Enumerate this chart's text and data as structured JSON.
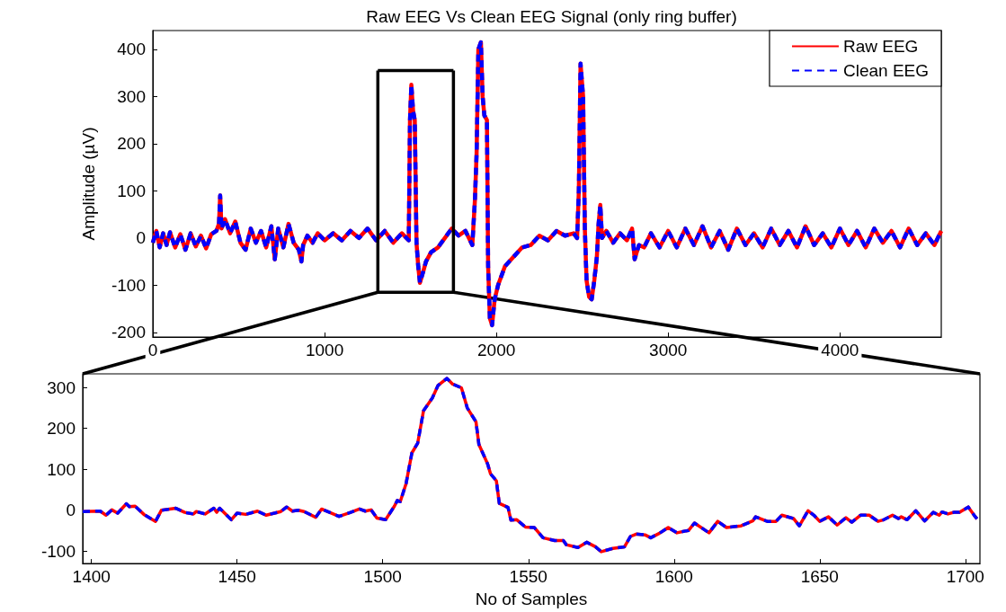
{
  "chart_data": [
    {
      "type": "line",
      "title": "Raw EEG Vs Clean EEG Signal (only ring buffer)",
      "ylabel": "Amplitude (µV)",
      "legend": "top right",
      "marker": "none",
      "xlim": [
        0,
        4590
      ],
      "ylim": [
        -210,
        440
      ],
      "xticks": [
        0,
        1000,
        2000,
        3000,
        4000
      ],
      "yticks": [
        -200,
        -100,
        0,
        100,
        200,
        300,
        400
      ],
      "series": [
        {
          "name": "Raw EEG",
          "color": "#ff0000",
          "line_style": "solid",
          "x": [
            0,
            20,
            40,
            60,
            80,
            100,
            130,
            160,
            190,
            220,
            250,
            280,
            310,
            340,
            370,
            385,
            392,
            400,
            420,
            450,
            480,
            510,
            540,
            570,
            600,
            630,
            660,
            690,
            700,
            710,
            730,
            760,
            790,
            820,
            850,
            865,
            875,
            900,
            930,
            960,
            1000,
            1050,
            1100,
            1150,
            1200,
            1250,
            1300,
            1350,
            1400,
            1450,
            1490,
            1497,
            1505,
            1515,
            1525,
            1535,
            1545,
            1555,
            1575,
            1590,
            1620,
            1660,
            1700,
            1740,
            1780,
            1820,
            1860,
            1875,
            1885,
            1895,
            1910,
            1920,
            1930,
            1945,
            1952,
            1962,
            1975,
            1990,
            2010,
            2050,
            2100,
            2150,
            2200,
            2250,
            2300,
            2350,
            2400,
            2450,
            2470,
            2480,
            2490,
            2505,
            2515,
            2525,
            2540,
            2555,
            2570,
            2585,
            2595,
            2605,
            2615,
            2640,
            2680,
            2720,
            2760,
            2790,
            2805,
            2830,
            2860,
            2900,
            2950,
            3000,
            3050,
            3100,
            3150,
            3200,
            3250,
            3300,
            3350,
            3400,
            3450,
            3500,
            3550,
            3600,
            3650,
            3700,
            3750,
            3800,
            3850,
            3900,
            3950,
            4000,
            4050,
            4100,
            4150,
            4200,
            4250,
            4300,
            4350,
            4400,
            4450,
            4500,
            4550,
            4590
          ],
          "values": [
            -10,
            15,
            -20,
            10,
            -15,
            12,
            -20,
            8,
            -25,
            10,
            -18,
            5,
            -22,
            8,
            15,
            30,
            90,
            20,
            40,
            10,
            35,
            -10,
            -25,
            20,
            -10,
            15,
            -20,
            25,
            -10,
            -45,
            20,
            -20,
            30,
            -10,
            -25,
            -50,
            -15,
            5,
            -10,
            10,
            -5,
            10,
            -5,
            15,
            0,
            20,
            -5,
            15,
            -10,
            10,
            -5,
            250,
            325,
            270,
            250,
            -10,
            -60,
            -95,
            -70,
            -50,
            -30,
            -20,
            0,
            20,
            5,
            15,
            -15,
            80,
            180,
            400,
            415,
            300,
            260,
            250,
            -60,
            -170,
            -185,
            -130,
            -100,
            -60,
            -40,
            -20,
            -15,
            5,
            -5,
            15,
            5,
            10,
            0,
            100,
            370,
            300,
            20,
            -90,
            -125,
            -130,
            -90,
            -40,
            30,
            70,
            0,
            15,
            -10,
            10,
            -5,
            20,
            -45,
            -15,
            -20,
            10,
            -20,
            15,
            -20,
            20,
            -15,
            25,
            -20,
            15,
            -25,
            20,
            -15,
            10,
            -20,
            20,
            -15,
            15,
            -20,
            25,
            -15,
            10,
            -20,
            20,
            -15,
            15,
            -20,
            20,
            -10,
            15,
            -20,
            20,
            -15,
            10,
            -15,
            15
          ]
        },
        {
          "name": "Clean EEG",
          "color": "#0000ff",
          "line_style": "dashed",
          "x": [
            0,
            20,
            40,
            60,
            80,
            100,
            130,
            160,
            190,
            220,
            250,
            280,
            310,
            340,
            370,
            385,
            392,
            400,
            420,
            450,
            480,
            510,
            540,
            570,
            600,
            630,
            660,
            690,
            700,
            710,
            730,
            760,
            790,
            820,
            850,
            865,
            875,
            900,
            930,
            960,
            1000,
            1050,
            1100,
            1150,
            1200,
            1250,
            1300,
            1350,
            1400,
            1450,
            1490,
            1497,
            1505,
            1515,
            1525,
            1535,
            1545,
            1555,
            1575,
            1590,
            1620,
            1660,
            1700,
            1740,
            1780,
            1820,
            1860,
            1875,
            1885,
            1895,
            1910,
            1920,
            1930,
            1945,
            1952,
            1962,
            1975,
            1990,
            2010,
            2050,
            2100,
            2150,
            2200,
            2250,
            2300,
            2350,
            2400,
            2450,
            2470,
            2480,
            2490,
            2505,
            2515,
            2525,
            2540,
            2555,
            2570,
            2585,
            2595,
            2605,
            2615,
            2640,
            2680,
            2720,
            2760,
            2790,
            2805,
            2830,
            2860,
            2900,
            2950,
            3000,
            3050,
            3100,
            3150,
            3200,
            3250,
            3300,
            3350,
            3400,
            3450,
            3500,
            3550,
            3600,
            3650,
            3700,
            3750,
            3800,
            3850,
            3900,
            3950,
            4000,
            4050,
            4100,
            4150,
            4200,
            4250,
            4300,
            4350,
            4400,
            4450,
            4500,
            4550,
            4590
          ],
          "values": [
            -10,
            15,
            -20,
            10,
            -15,
            12,
            -20,
            8,
            -25,
            10,
            -18,
            5,
            -22,
            8,
            15,
            30,
            90,
            20,
            40,
            10,
            35,
            -10,
            -25,
            20,
            -10,
            15,
            -20,
            25,
            -10,
            -45,
            20,
            -20,
            30,
            -10,
            -25,
            -50,
            -15,
            5,
            -10,
            10,
            -5,
            10,
            -5,
            15,
            0,
            20,
            -5,
            15,
            -10,
            10,
            -5,
            250,
            325,
            270,
            250,
            -10,
            -60,
            -95,
            -70,
            -50,
            -30,
            -20,
            0,
            20,
            5,
            15,
            -15,
            80,
            180,
            400,
            415,
            300,
            260,
            250,
            -60,
            -170,
            -185,
            -130,
            -100,
            -60,
            -40,
            -20,
            -15,
            5,
            -5,
            15,
            5,
            10,
            0,
            100,
            370,
            300,
            20,
            -90,
            -125,
            -130,
            -90,
            -40,
            30,
            70,
            0,
            15,
            -10,
            10,
            -5,
            20,
            -45,
            -15,
            -20,
            10,
            -20,
            15,
            -20,
            20,
            -15,
            25,
            -20,
            15,
            -25,
            20,
            -15,
            10,
            -20,
            20,
            -15,
            15,
            -20,
            25,
            -15,
            10,
            -20,
            20,
            -15,
            15,
            -20,
            20,
            -10,
            15,
            -20,
            20,
            -15,
            10,
            -15,
            15
          ]
        },
        {
          "type": "line",
          "x": [
            1310,
            1310,
            1750,
            1750
          ],
          "color": "#000000",
          "line_style": "solid",
          "values": [
            355,
            -115,
            -115,
            355
          ]
        },
        {
          "type": "line",
          "x": [
            1310,
            1750
          ],
          "color": "#000000",
          "line_style": "solid",
          "values": [
            355,
            355
          ]
        }
      ]
    },
    {
      "type": "line",
      "xlabel": "No of Samples",
      "marker": "none",
      "xlim": [
        1397,
        1705
      ],
      "ylim": [
        -130,
        333
      ],
      "xticks": [
        1400,
        1450,
        1500,
        1550,
        1600,
        1650,
        1700
      ],
      "yticks": [
        -100,
        0,
        100,
        200,
        300
      ],
      "x": [
        1397,
        1403,
        1405,
        1407,
        1409,
        1412,
        1413,
        1415,
        1418,
        1422,
        1424,
        1429,
        1432,
        1435,
        1436,
        1439,
        1442,
        1443,
        1444,
        1448,
        1450,
        1453,
        1457,
        1460,
        1465,
        1467,
        1469,
        1471,
        1473,
        1477,
        1479,
        1483,
        1485,
        1489,
        1492,
        1494,
        1496,
        1498,
        1501,
        1504,
        1505,
        1506,
        1508,
        1510,
        1512,
        1514,
        1517,
        1519,
        1522,
        1524,
        1527,
        1529,
        1532,
        1533,
        1536,
        1537,
        1539,
        1540,
        1543,
        1544,
        1546,
        1549,
        1552,
        1555,
        1559,
        1562,
        1563,
        1567,
        1570,
        1573,
        1575,
        1579,
        1583,
        1585,
        1587,
        1590,
        1592,
        1595,
        1598,
        1601,
        1605,
        1607,
        1612,
        1615,
        1618,
        1623,
        1627,
        1628,
        1632,
        1635,
        1637,
        1641,
        1643,
        1646,
        1648,
        1650,
        1653,
        1656,
        1659,
        1661,
        1664,
        1667,
        1670,
        1672,
        1675,
        1677,
        1678,
        1680,
        1683,
        1686,
        1689,
        1691,
        1692,
        1694,
        1696,
        1698,
        1701,
        1703,
        1704
      ],
      "series": [
        {
          "color": "#ff0000",
          "line_style": "solid",
          "values": [
            -3,
            -2,
            -12,
            1,
            -7,
            16,
            9,
            10,
            -10,
            -27,
            0,
            5,
            -5,
            -9,
            -3,
            -9,
            5,
            -5,
            5,
            -23,
            -7,
            -10,
            -2,
            -12,
            -3,
            8,
            -2,
            0,
            -3,
            -17,
            3,
            -9,
            -15,
            -5,
            3,
            -2,
            1,
            -19,
            -23,
            10,
            24,
            21,
            65,
            140,
            164,
            243,
            274,
            305,
            322,
            308,
            299,
            250,
            216,
            161,
            113,
            89,
            72,
            17,
            7,
            -24,
            -23,
            -41,
            -42,
            -67,
            -74,
            -74,
            -84,
            -91,
            -78,
            -89,
            -101,
            -93,
            -89,
            -64,
            -58,
            -60,
            -67,
            -56,
            -42,
            -55,
            -49,
            -31,
            -55,
            -27,
            -42,
            -38,
            -26,
            -16,
            -27,
            -27,
            -12,
            -20,
            -38,
            -1,
            -12,
            -27,
            -16,
            -36,
            -18,
            -29,
            -12,
            -12,
            -27,
            -23,
            -12,
            -20,
            -16,
            -23,
            -1,
            -26,
            -5,
            -12,
            -4,
            -9,
            -5,
            -5,
            8,
            -12,
            -21
          ]
        },
        {
          "color": "#0000ff",
          "line_style": "dashed",
          "values": [
            -3,
            -2,
            -12,
            1,
            -7,
            16,
            9,
            10,
            -10,
            -27,
            0,
            5,
            -5,
            -9,
            -3,
            -9,
            5,
            -5,
            5,
            -23,
            -7,
            -10,
            -2,
            -12,
            -3,
            8,
            -2,
            0,
            -3,
            -17,
            3,
            -9,
            -15,
            -5,
            3,
            -2,
            1,
            -19,
            -23,
            10,
            24,
            21,
            65,
            140,
            164,
            243,
            274,
            305,
            322,
            308,
            299,
            250,
            216,
            161,
            113,
            89,
            72,
            17,
            7,
            -24,
            -23,
            -41,
            -42,
            -67,
            -74,
            -74,
            -84,
            -91,
            -78,
            -89,
            -101,
            -93,
            -89,
            -64,
            -58,
            -60,
            -67,
            -56,
            -42,
            -55,
            -49,
            -31,
            -55,
            -27,
            -42,
            -38,
            -26,
            -16,
            -27,
            -27,
            -12,
            -20,
            -38,
            -1,
            -12,
            -27,
            -16,
            -36,
            -18,
            -29,
            -12,
            -12,
            -27,
            -23,
            -12,
            -20,
            -16,
            -23,
            -1,
            -26,
            -5,
            -12,
            -4,
            -9,
            -5,
            -5,
            8,
            -12,
            -21
          ]
        }
      ]
    }
  ]
}
